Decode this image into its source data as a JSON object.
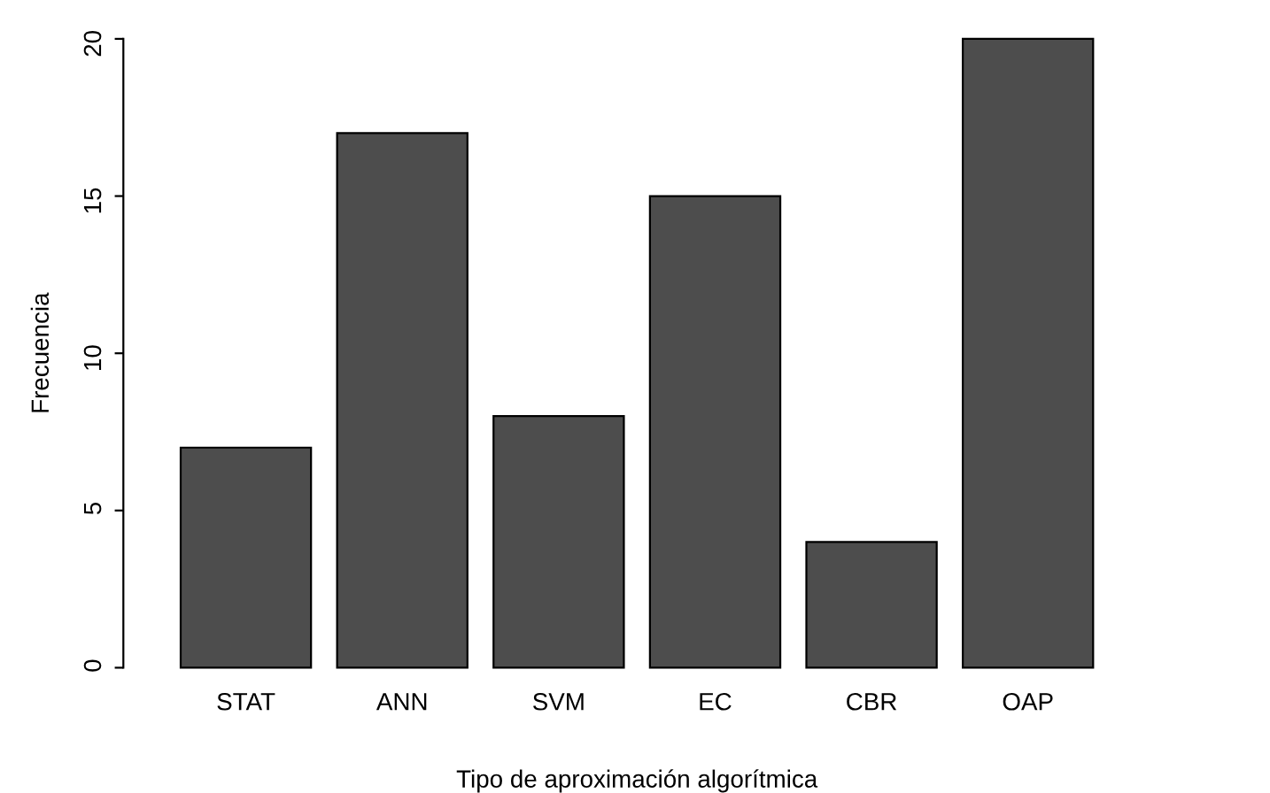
{
  "chart_data": {
    "type": "bar",
    "xlabel": "Tipo de aproximación algorítmica",
    "ylabel": "Frecuencia",
    "categories": [
      "STAT",
      "ANN",
      "SVM",
      "EC",
      "CBR",
      "OAP"
    ],
    "values": [
      7,
      17,
      8,
      15,
      4,
      20
    ],
    "color": "#4d4d4d",
    "ylim": [
      0,
      20
    ],
    "yticks": [
      0,
      5,
      10,
      15,
      20
    ],
    "grid": false,
    "legend": false
  }
}
